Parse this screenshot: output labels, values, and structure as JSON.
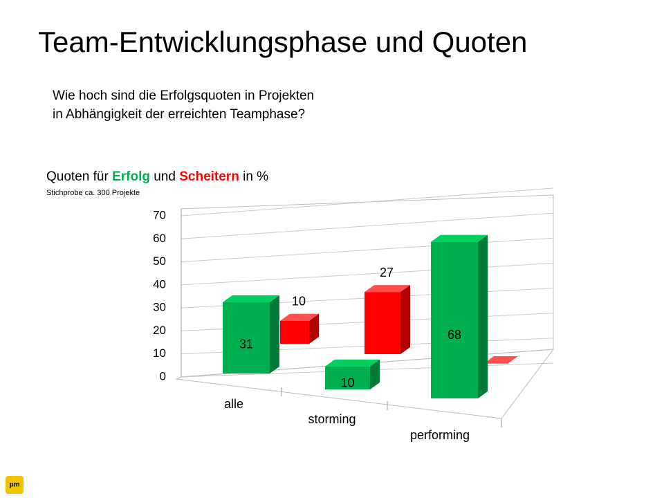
{
  "header": {
    "title": "Team-Entwicklungsphase und Quoten",
    "question": [
      "Wie hoch sind die Erfolgsquoten in Projekten",
      "in Abhängigkeit der erreichten Teamphase?"
    ]
  },
  "chart_data": {
    "type": "bar3d",
    "title_parts": [
      "Quoten für",
      "und",
      "in %"
    ],
    "note": "Stichprobe ca. 300 Projekte",
    "categories": [
      "alle",
      "storming",
      "performing"
    ],
    "series": [
      {
        "name": "Erfolg",
        "color": "#00b050",
        "values": [
          31,
          10,
          68
        ]
      },
      {
        "name": "Scheitern",
        "color": "#ff0000",
        "values": [
          10,
          27,
          0
        ]
      }
    ],
    "ylim": [
      0,
      70
    ],
    "yticks": [
      0,
      10,
      20,
      30,
      40,
      50,
      60,
      70
    ],
    "grid": true
  }
}
